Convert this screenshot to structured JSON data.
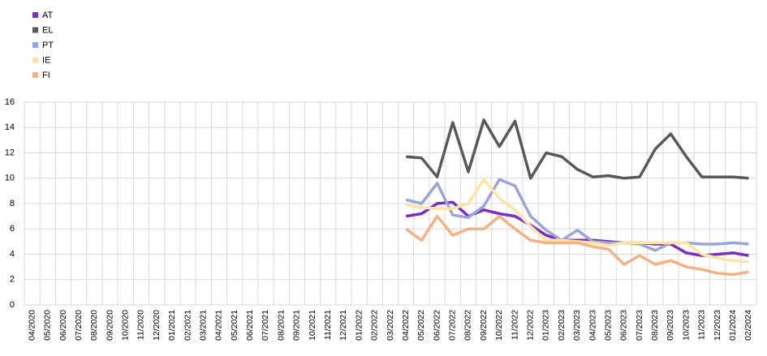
{
  "chart_data": {
    "type": "line",
    "categories": [
      "04/2020",
      "05/2020",
      "06/2020",
      "07/2020",
      "08/2020",
      "09/2020",
      "10/2020",
      "11/2020",
      "12/2020",
      "01/2021",
      "02/2021",
      "03/2021",
      "04/2021",
      "05/2021",
      "06/2021",
      "07/2021",
      "08/2021",
      "09/2021",
      "10/2021",
      "11/2021",
      "12/2021",
      "01/2022",
      "02/2022",
      "03/2022",
      "04/2022",
      "05/2022",
      "06/2022",
      "07/2022",
      "08/2022",
      "09/2022",
      "10/2022",
      "11/2022",
      "12/2022",
      "01/2023",
      "02/2023",
      "03/2023",
      "04/2023",
      "05/2023",
      "06/2023",
      "07/2023",
      "08/2023",
      "09/2023",
      "10/2023",
      "11/2023",
      "12/2023",
      "01/2024",
      "02/2024"
    ],
    "series": [
      {
        "name": "AT",
        "color": "#7b2fbe",
        "values": [
          null,
          null,
          null,
          null,
          null,
          null,
          null,
          null,
          null,
          null,
          null,
          null,
          null,
          null,
          null,
          null,
          null,
          null,
          null,
          null,
          null,
          null,
          null,
          null,
          7.0,
          7.2,
          8.0,
          8.1,
          7.0,
          7.5,
          7.2,
          7.0,
          6.3,
          5.5,
          5.1,
          5.1,
          5.1,
          5.0,
          4.9,
          4.9,
          4.8,
          4.8,
          4.1,
          3.9,
          4.0,
          4.1,
          3.9
        ]
      },
      {
        "name": "EL",
        "color": "#595959",
        "values": [
          null,
          null,
          null,
          null,
          null,
          null,
          null,
          null,
          null,
          null,
          null,
          null,
          null,
          null,
          null,
          null,
          null,
          null,
          null,
          null,
          null,
          null,
          null,
          null,
          11.7,
          11.6,
          10.1,
          14.4,
          10.5,
          14.6,
          12.5,
          14.5,
          10.0,
          12.0,
          11.7,
          10.7,
          10.1,
          10.2,
          10.0,
          10.1,
          12.3,
          13.5,
          11.7,
          10.1,
          10.1,
          10.1,
          10.0
        ]
      },
      {
        "name": "PT",
        "color": "#9ba4d9",
        "values": [
          null,
          null,
          null,
          null,
          null,
          null,
          null,
          null,
          null,
          null,
          null,
          null,
          null,
          null,
          null,
          null,
          null,
          null,
          null,
          null,
          null,
          null,
          null,
          null,
          8.3,
          8.0,
          9.6,
          7.1,
          6.9,
          7.8,
          9.9,
          9.4,
          7.0,
          5.9,
          5.1,
          5.9,
          5.0,
          4.9,
          4.9,
          4.8,
          4.3,
          4.9,
          4.9,
          4.8,
          4.8,
          4.9,
          4.8
        ]
      },
      {
        "name": "IE",
        "color": "#fde3a4",
        "values": [
          null,
          null,
          null,
          null,
          null,
          null,
          null,
          null,
          null,
          null,
          null,
          null,
          null,
          null,
          null,
          null,
          null,
          null,
          null,
          null,
          null,
          null,
          null,
          null,
          7.9,
          7.7,
          7.6,
          7.6,
          8.0,
          9.9,
          8.4,
          7.5,
          6.2,
          5.1,
          5.1,
          5.0,
          4.9,
          4.7,
          4.9,
          4.9,
          4.9,
          4.9,
          4.9,
          4.0,
          3.7,
          3.5,
          3.4
        ]
      },
      {
        "name": "FI",
        "color": "#f4b183",
        "values": [
          null,
          null,
          null,
          null,
          null,
          null,
          null,
          null,
          null,
          null,
          null,
          null,
          null,
          null,
          null,
          null,
          null,
          null,
          null,
          null,
          null,
          null,
          null,
          null,
          6.0,
          5.1,
          7.0,
          5.5,
          6.0,
          6.0,
          7.0,
          6.0,
          5.1,
          4.9,
          4.9,
          4.9,
          4.6,
          4.4,
          3.2,
          3.9,
          3.2,
          3.5,
          3.0,
          2.8,
          2.5,
          2.4,
          2.6
        ]
      }
    ],
    "ylim": [
      0,
      16
    ],
    "yticks": [
      0,
      2,
      4,
      6,
      8,
      10,
      12,
      14,
      16
    ],
    "grid": true,
    "legend": "top-left"
  }
}
